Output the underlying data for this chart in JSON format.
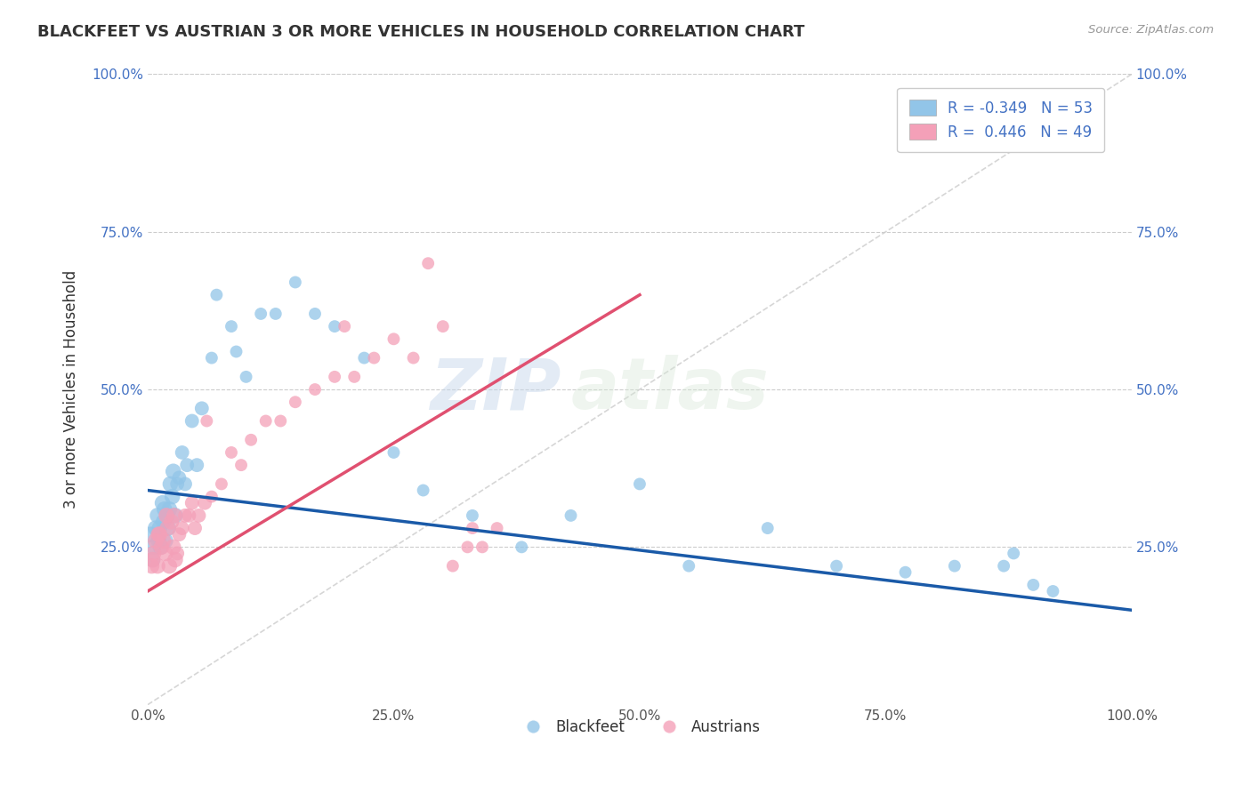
{
  "title_display": "BLACKFEET VS AUSTRIAN 3 OR MORE VEHICLES IN HOUSEHOLD CORRELATION CHART",
  "ylabel": "3 or more Vehicles in Household",
  "source_text": "Source: ZipAtlas.com",
  "xlim": [
    0,
    100
  ],
  "ylim": [
    0,
    100
  ],
  "blackfeet_color": "#92C5E8",
  "austrian_color": "#F4A0B8",
  "blackfeet_R": -0.349,
  "blackfeet_N": 53,
  "austrian_R": 0.446,
  "austrian_N": 49,
  "trend_blue_color": "#1A5AA8",
  "trend_pink_color": "#E05070",
  "watermark_zip": "ZIP",
  "watermark_atlas": "atlas",
  "legend_label1": "Blackfeet",
  "legend_label2": "Austrians",
  "blackfeet_x": [
    0.3,
    0.5,
    0.6,
    0.8,
    1.0,
    1.1,
    1.2,
    1.3,
    1.5,
    1.6,
    1.7,
    1.8,
    2.0,
    2.1,
    2.2,
    2.3,
    2.5,
    2.6,
    2.8,
    3.0,
    3.2,
    3.5,
    3.8,
    4.0,
    4.5,
    5.0,
    5.5,
    6.5,
    7.0,
    8.5,
    9.0,
    10.0,
    11.5,
    13.0,
    15.0,
    17.0,
    19.0,
    22.0,
    25.0,
    28.0,
    33.0,
    38.0,
    43.0,
    50.0,
    55.0,
    63.0,
    70.0,
    77.0,
    82.0,
    87.0,
    88.0,
    90.0,
    92.0
  ],
  "blackfeet_y": [
    27,
    23,
    25,
    28,
    30,
    26,
    28,
    25,
    32,
    29,
    31,
    26,
    30,
    28,
    31,
    35,
    33,
    37,
    30,
    35,
    36,
    40,
    35,
    38,
    45,
    38,
    47,
    55,
    65,
    60,
    56,
    52,
    62,
    62,
    67,
    62,
    60,
    55,
    40,
    34,
    30,
    25,
    30,
    35,
    22,
    28,
    22,
    21,
    22,
    22,
    24,
    19,
    18
  ],
  "austrian_x": [
    0.4,
    0.6,
    0.8,
    1.0,
    1.2,
    1.4,
    1.6,
    1.8,
    2.0,
    2.2,
    2.4,
    2.6,
    2.8,
    3.0,
    3.2,
    3.5,
    3.8,
    4.2,
    4.8,
    5.2,
    5.8,
    6.5,
    7.5,
    8.5,
    9.5,
    10.5,
    12.0,
    13.5,
    15.0,
    17.0,
    19.0,
    21.0,
    23.0,
    25.0,
    27.0,
    28.5,
    30.0,
    31.0,
    32.5,
    34.0,
    35.5,
    0.5,
    1.1,
    1.9,
    2.7,
    4.5,
    6.0,
    20.0,
    33.0
  ],
  "austrian_y": [
    22,
    24,
    26,
    22,
    27,
    25,
    26,
    24,
    28,
    22,
    29,
    25,
    23,
    24,
    27,
    28,
    30,
    30,
    28,
    30,
    32,
    33,
    35,
    40,
    38,
    42,
    45,
    45,
    48,
    50,
    52,
    52,
    55,
    58,
    55,
    70,
    60,
    22,
    25,
    25,
    28,
    23,
    27,
    30,
    30,
    32,
    45,
    60,
    28
  ],
  "blue_trend_x0": 0,
  "blue_trend_y0": 34,
  "blue_trend_x1": 100,
  "blue_trend_y1": 15,
  "pink_trend_x0": 0,
  "pink_trend_y0": 18,
  "pink_trend_x1": 50,
  "pink_trend_y1": 65,
  "bg_color": "#FFFFFF",
  "grid_color": "#CCCCCC",
  "diag_line_color": "#CCCCCC"
}
